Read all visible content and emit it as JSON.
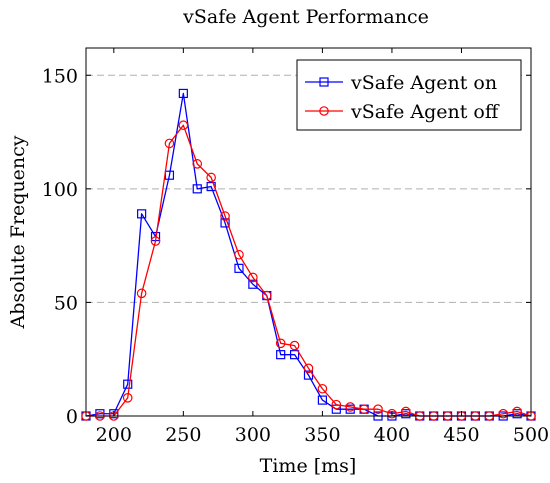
{
  "chart_data": {
    "type": "line",
    "title": "vSafe Agent Performance",
    "xlabel": "Time [ms]",
    "ylabel": "Absolute Frequency",
    "xlim": [
      180,
      500
    ],
    "ylim": [
      0,
      162
    ],
    "xticks": [
      200,
      250,
      300,
      350,
      400,
      450,
      500
    ],
    "yticks": [
      0,
      50,
      100,
      150
    ],
    "grid": "horizontal-dashed",
    "legend_position": "top-right",
    "x": [
      180,
      190,
      200,
      210,
      220,
      230,
      240,
      250,
      260,
      270,
      280,
      290,
      300,
      310,
      320,
      330,
      340,
      350,
      360,
      370,
      380,
      390,
      400,
      410,
      420,
      430,
      440,
      450,
      460,
      470,
      480,
      490,
      500
    ],
    "series": [
      {
        "name": "vSafe Agent on",
        "color": "#0000ff",
        "marker": "square",
        "values": [
          0,
          1,
          1,
          14,
          89,
          79,
          106,
          142,
          100,
          101,
          85,
          65,
          58,
          53,
          27,
          27,
          18,
          7,
          3,
          3,
          3,
          0,
          0,
          1,
          0,
          0,
          0,
          0,
          0,
          0,
          0,
          1,
          0
        ]
      },
      {
        "name": "vSafe Agent off",
        "color": "#ff0000",
        "marker": "circle",
        "values": [
          0,
          0,
          0,
          8,
          54,
          77,
          120,
          128,
          111,
          105,
          88,
          71,
          61,
          53,
          32,
          31,
          21,
          12,
          5,
          4,
          3,
          3,
          1,
          2,
          0,
          0,
          0,
          0,
          0,
          0,
          1,
          2,
          0
        ]
      }
    ]
  }
}
